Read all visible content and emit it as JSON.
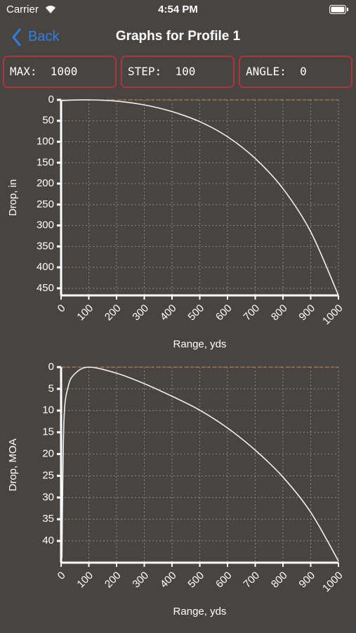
{
  "status_bar": {
    "carrier": "Carrier",
    "time": "4:54 PM"
  },
  "nav": {
    "back": "Back",
    "title": "Graphs for Profile 1"
  },
  "fields": [
    {
      "label": "MAX:",
      "value": "1000"
    },
    {
      "label": "STEP:",
      "value": "100"
    },
    {
      "label": "ANGLE:",
      "value": "0"
    }
  ],
  "chart_data": [
    {
      "type": "line",
      "x_label": "Range, yds",
      "y_label": "Drop, in",
      "x": [
        0,
        100,
        200,
        300,
        400,
        500,
        600,
        700,
        800,
        900,
        1000
      ],
      "series": [
        {
          "color": "#f2f0ee",
          "values": [
            1.5,
            0,
            3,
            12,
            28,
            52,
            88,
            140,
            212,
            315,
            467
          ]
        }
      ],
      "xlim": [
        0,
        1000
      ],
      "xticks": [
        0,
        100,
        200,
        300,
        400,
        500,
        600,
        700,
        800,
        900,
        1000
      ],
      "ylim": [
        0,
        467
      ],
      "yticks": [
        0,
        50,
        100,
        150,
        200,
        250,
        300,
        350,
        400,
        450
      ],
      "y_inverted": true,
      "grid": true,
      "zero_line": {
        "value": 0,
        "color": "#d0783a"
      }
    },
    {
      "type": "line",
      "x_label": "Range, yds",
      "y_label": "Drop, MOA",
      "x": [
        3,
        10,
        25,
        50,
        100,
        200,
        300,
        400,
        500,
        600,
        700,
        800,
        900,
        1000
      ],
      "series": [
        {
          "color": "#f2f0ee",
          "values": [
            44,
            13,
            4.6,
            1.5,
            0,
            1.4,
            3.8,
            6.7,
            9.9,
            14,
            19.1,
            25.3,
            33.4,
            44.6
          ]
        }
      ],
      "xlim": [
        0,
        1000
      ],
      "xticks": [
        0,
        100,
        200,
        300,
        400,
        500,
        600,
        700,
        800,
        900,
        1000
      ],
      "ylim": [
        0,
        45
      ],
      "yticks": [
        0,
        5,
        10,
        15,
        20,
        25,
        30,
        35,
        40
      ],
      "y_inverted": true,
      "grid": true,
      "zero_line": {
        "value": 0,
        "color": "#d0783a"
      }
    }
  ]
}
